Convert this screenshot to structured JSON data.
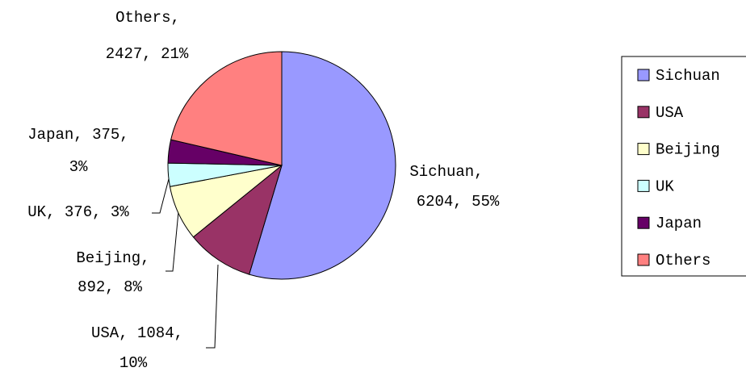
{
  "chart_data": {
    "type": "pie",
    "categories": [
      "Sichuan",
      "USA",
      "Beijing",
      "UK",
      "Japan",
      "Others"
    ],
    "values": [
      6204,
      1084,
      892,
      376,
      375,
      2427
    ],
    "value_labels": [
      [
        "Sichuan,",
        "6204, 55%"
      ],
      [
        "USA, 1084,",
        "10%"
      ],
      [
        "Beijing,",
        "892, 8%"
      ],
      [
        "UK, 376, 3%"
      ],
      [
        "Japan, 375,",
        "3%"
      ],
      [
        "Others,",
        "2427, 21%"
      ]
    ],
    "colors": [
      "#9999ff",
      "#993366",
      "#ffffcc",
      "#ccffff",
      "#660066",
      "#ff8080"
    ],
    "legend": "right"
  }
}
